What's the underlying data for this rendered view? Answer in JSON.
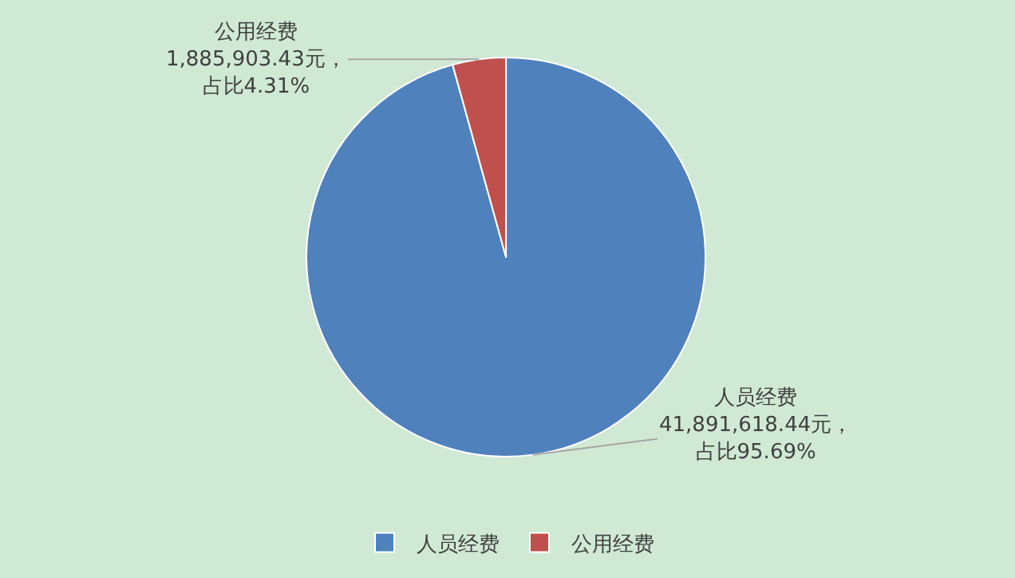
{
  "chart_data": {
    "type": "pie",
    "categories": [
      "人员经费",
      "公用经费"
    ],
    "values": [
      41891618.44,
      1885903.43
    ],
    "colors": [
      "#4f81bd",
      "#c0504d"
    ],
    "value_labels": [
      "41,891,618.44元，占比95.69%",
      "1,885,903.43元，占比4.31%"
    ],
    "legend": "bottom"
  }
}
